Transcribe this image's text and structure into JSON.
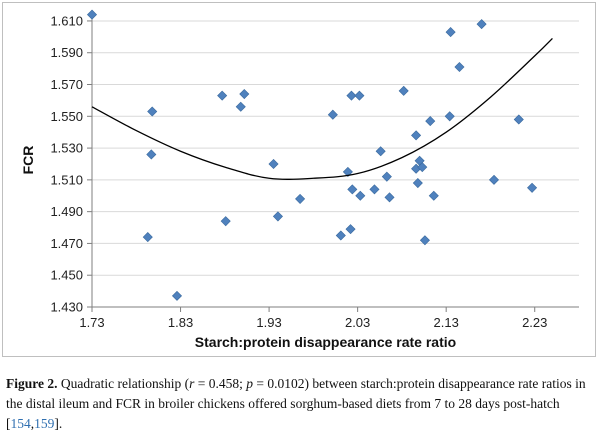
{
  "chart_data": {
    "type": "scatter",
    "xlabel": "Starch:protein disappearance rate ratio",
    "ylabel": "FCR",
    "xlim": [
      1.73,
      2.28
    ],
    "ylim": [
      1.43,
      1.615
    ],
    "x_ticks": [
      "1.73",
      "1.83",
      "1.93",
      "2.03",
      "2.13",
      "2.23"
    ],
    "y_ticks": [
      "1.430",
      "1.450",
      "1.470",
      "1.490",
      "1.510",
      "1.530",
      "1.550",
      "1.570",
      "1.590",
      "1.610"
    ],
    "grid": "horizontal",
    "marker": "diamond",
    "marker_color": "#4f81bd",
    "trend_color": "#000000",
    "trend_type": "quadratic",
    "points": [
      {
        "x": 1.73,
        "y": 1.614
      },
      {
        "x": 1.798,
        "y": 1.553
      },
      {
        "x": 1.797,
        "y": 1.526
      },
      {
        "x": 1.793,
        "y": 1.474
      },
      {
        "x": 1.826,
        "y": 1.437
      },
      {
        "x": 1.877,
        "y": 1.563
      },
      {
        "x": 1.881,
        "y": 1.484
      },
      {
        "x": 1.902,
        "y": 1.564
      },
      {
        "x": 1.898,
        "y": 1.556
      },
      {
        "x": 1.935,
        "y": 1.52
      },
      {
        "x": 1.94,
        "y": 1.487
      },
      {
        "x": 1.965,
        "y": 1.498
      },
      {
        "x": 2.002,
        "y": 1.551
      },
      {
        "x": 2.023,
        "y": 1.563
      },
      {
        "x": 2.032,
        "y": 1.563
      },
      {
        "x": 2.019,
        "y": 1.515
      },
      {
        "x": 2.024,
        "y": 1.504
      },
      {
        "x": 2.033,
        "y": 1.5
      },
      {
        "x": 2.011,
        "y": 1.475
      },
      {
        "x": 2.022,
        "y": 1.479
      },
      {
        "x": 2.049,
        "y": 1.504
      },
      {
        "x": 2.056,
        "y": 1.528
      },
      {
        "x": 2.063,
        "y": 1.512
      },
      {
        "x": 2.066,
        "y": 1.499
      },
      {
        "x": 2.082,
        "y": 1.566
      },
      {
        "x": 2.096,
        "y": 1.538
      },
      {
        "x": 2.096,
        "y": 1.517
      },
      {
        "x": 2.1,
        "y": 1.522
      },
      {
        "x": 2.098,
        "y": 1.508
      },
      {
        "x": 2.103,
        "y": 1.518
      },
      {
        "x": 2.106,
        "y": 1.472
      },
      {
        "x": 2.112,
        "y": 1.547
      },
      {
        "x": 2.116,
        "y": 1.5
      },
      {
        "x": 2.135,
        "y": 1.603
      },
      {
        "x": 2.134,
        "y": 1.55
      },
      {
        "x": 2.145,
        "y": 1.581
      },
      {
        "x": 2.17,
        "y": 1.608
      },
      {
        "x": 2.212,
        "y": 1.548
      },
      {
        "x": 2.184,
        "y": 1.51
      },
      {
        "x": 2.227,
        "y": 1.505
      }
    ],
    "trend_points": [
      {
        "x": 1.73,
        "y": 1.556
      },
      {
        "x": 1.78,
        "y": 1.541
      },
      {
        "x": 1.83,
        "y": 1.528
      },
      {
        "x": 1.88,
        "y": 1.518
      },
      {
        "x": 1.93,
        "y": 1.511
      },
      {
        "x": 1.98,
        "y": 1.511
      },
      {
        "x": 2.03,
        "y": 1.514
      },
      {
        "x": 2.08,
        "y": 1.524
      },
      {
        "x": 2.13,
        "y": 1.54
      },
      {
        "x": 2.18,
        "y": 1.562
      },
      {
        "x": 2.23,
        "y": 1.588
      },
      {
        "x": 2.25,
        "y": 1.599
      }
    ]
  },
  "caption": {
    "label": "Figure 2.",
    "text_1": " Quadratic relationship (",
    "r_symbol": "r",
    "text_2": " = 0.458; ",
    "p_symbol": "p",
    "text_3": " = 0.0102) between starch:protein disappearance rate ratios in the distal ileum and FCR in broiler chickens offered sorghum-based diets from 7 to 28 days post-hatch [",
    "ref_1": "154",
    "ref_sep": ",",
    "ref_2": "159",
    "text_4": "]."
  }
}
